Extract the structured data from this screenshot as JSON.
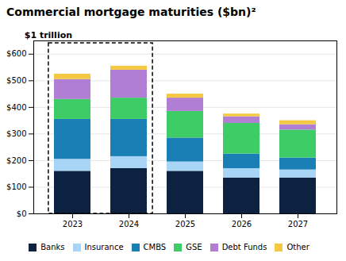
{
  "chart_data": {
    "type": "bar",
    "stacked": true,
    "title": "Commercial mortgage maturities ($bn)²",
    "subtitle": "$1 trillion",
    "categories": [
      "2023",
      "2024",
      "2025",
      "2026",
      "2027"
    ],
    "series": [
      {
        "name": "Banks",
        "color": "#0d2240",
        "values": [
          160,
          170,
          160,
          135,
          135
        ]
      },
      {
        "name": "Insurance",
        "color": "#a8d4f5",
        "values": [
          45,
          45,
          35,
          35,
          30
        ]
      },
      {
        "name": "CMBS",
        "color": "#1a7fb5",
        "values": [
          150,
          140,
          90,
          55,
          45
        ]
      },
      {
        "name": "GSE",
        "color": "#3dcc65",
        "values": [
          75,
          80,
          100,
          115,
          105
        ]
      },
      {
        "name": "Debt Funds",
        "color": "#b07fd4",
        "values": [
          75,
          105,
          50,
          25,
          20
        ]
      },
      {
        "name": "Other",
        "color": "#f5c842",
        "values": [
          20,
          15,
          15,
          10,
          15
        ]
      }
    ],
    "ylim": [
      0,
      650
    ],
    "yticks": [
      {
        "value": 0,
        "label": "$0"
      },
      {
        "value": 100,
        "label": "$100"
      },
      {
        "value": 200,
        "label": "$200"
      },
      {
        "value": 300,
        "label": "$300"
      },
      {
        "value": 400,
        "label": "$400"
      },
      {
        "value": 500,
        "label": "$500"
      },
      {
        "value": 600,
        "label": "$600"
      }
    ],
    "grid": true,
    "legend": "bottom"
  }
}
